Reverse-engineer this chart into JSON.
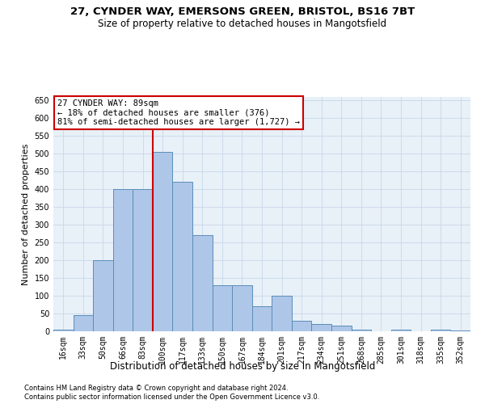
{
  "title1": "27, CYNDER WAY, EMERSONS GREEN, BRISTOL, BS16 7BT",
  "title2": "Size of property relative to detached houses in Mangotsfield",
  "xlabel": "Distribution of detached houses by size in Mangotsfield",
  "ylabel": "Number of detached properties",
  "categories": [
    "16sqm",
    "33sqm",
    "50sqm",
    "66sqm",
    "83sqm",
    "100sqm",
    "117sqm",
    "133sqm",
    "150sqm",
    "167sqm",
    "184sqm",
    "201sqm",
    "217sqm",
    "234sqm",
    "251sqm",
    "268sqm",
    "285sqm",
    "301sqm",
    "318sqm",
    "335sqm",
    "352sqm"
  ],
  "values": [
    5,
    45,
    200,
    400,
    400,
    505,
    420,
    270,
    130,
    130,
    70,
    100,
    30,
    20,
    15,
    5,
    0,
    5,
    0,
    5,
    2
  ],
  "bar_color": "#aec6e8",
  "bar_edge_color": "#5b8db8",
  "grid_color": "#c8d8e8",
  "bg_color": "#e8f0f8",
  "vline_x_index": 4,
  "vline_color": "#cc0000",
  "annotation_text": "27 CYNDER WAY: 89sqm\n← 18% of detached houses are smaller (376)\n81% of semi-detached houses are larger (1,727) →",
  "annotation_box_color": "white",
  "annotation_box_edge": "#cc0000",
  "footer1": "Contains HM Land Registry data © Crown copyright and database right 2024.",
  "footer2": "Contains public sector information licensed under the Open Government Licence v3.0.",
  "ylim": [
    0,
    660
  ],
  "yticks": [
    0,
    50,
    100,
    150,
    200,
    250,
    300,
    350,
    400,
    450,
    500,
    550,
    600,
    650
  ],
  "title1_fontsize": 9.5,
  "title2_fontsize": 8.5,
  "xlabel_fontsize": 8.5,
  "ylabel_fontsize": 8,
  "tick_fontsize": 7,
  "annot_fontsize": 7.5,
  "footer_fontsize": 6
}
